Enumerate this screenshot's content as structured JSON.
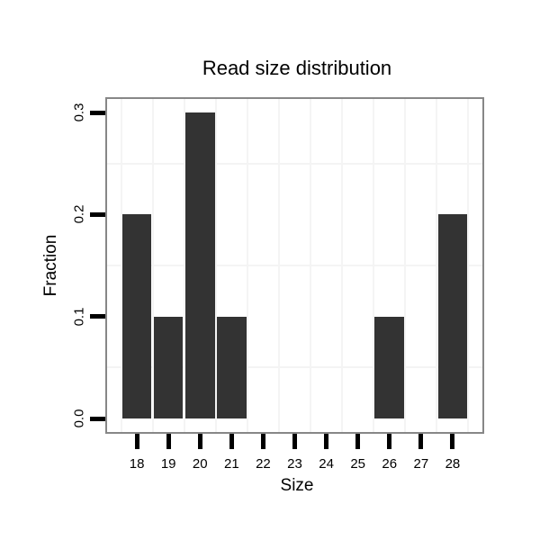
{
  "title": "Read size distribution",
  "chart_data": {
    "type": "bar",
    "title": "Read size distribution",
    "xlabel": "Size",
    "ylabel": "Fraction",
    "categories": [
      18,
      19,
      20,
      21,
      22,
      23,
      24,
      25,
      26,
      27,
      28
    ],
    "values": [
      0.2,
      0.1,
      0.3,
      0.1,
      0,
      0,
      0,
      0,
      0.1,
      0,
      0.2
    ],
    "x_tick_labels": [
      "18",
      "19",
      "20",
      "21",
      "22",
      "23",
      "24",
      "25",
      "26",
      "27",
      "28"
    ],
    "y_ticks": [
      0.0,
      0.1,
      0.2,
      0.3
    ],
    "y_tick_labels": [
      "0.0",
      "0.1",
      "0.2",
      "0.3"
    ],
    "xlim": [
      17.0,
      29.0
    ],
    "ylim": [
      -0.015,
      0.315
    ],
    "bar_width_units": 0.93,
    "minor_grid_x": [
      17.5,
      18.5,
      19.5,
      20.5,
      21.5,
      22.5,
      23.5,
      24.5,
      25.5,
      26.5,
      27.5,
      28.5
    ],
    "minor_grid_y": [
      0.05,
      0.15,
      0.25
    ],
    "grid": "minor-only",
    "legend": "none",
    "colors": {
      "bar_fill": "#333333",
      "panel_border": "#878787",
      "tick": "#000000",
      "minor_grid": "#f4f4f4",
      "background": "#ffffff",
      "text": "#000000"
    }
  }
}
